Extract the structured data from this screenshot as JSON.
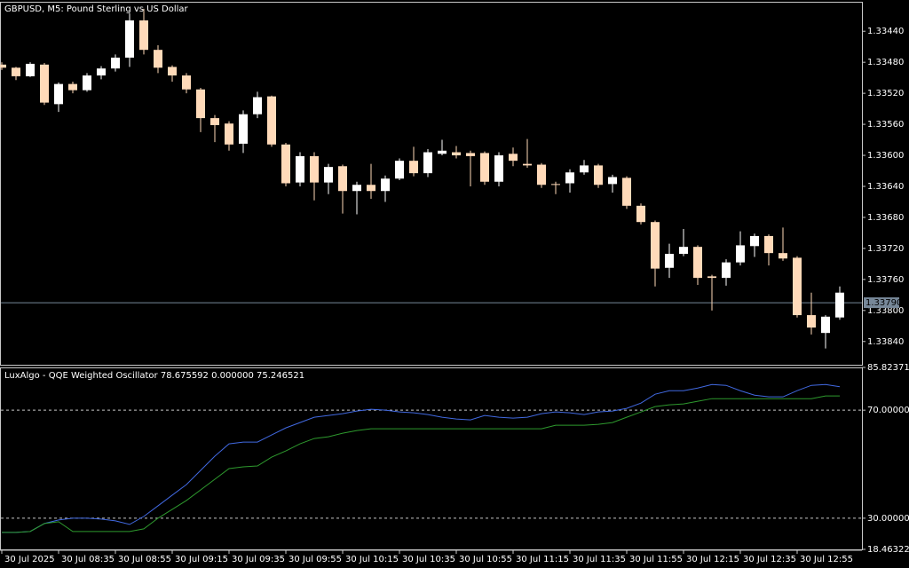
{
  "chart_data": [
    {
      "type": "candlestick",
      "title": "GBPUSD, M5:  Pound Sterling vs US Dollar",
      "open": [
        1.33483,
        1.33487,
        1.33498,
        1.33483,
        1.33534,
        1.33508,
        1.33516,
        1.33497,
        1.33488,
        1.33474,
        1.33426,
        1.33464,
        1.33486,
        1.33497,
        1.33515,
        1.33552,
        1.33559,
        1.33585,
        1.33547,
        1.33524,
        1.33586,
        1.33635,
        1.33601,
        1.33635,
        1.33614,
        1.33646,
        1.33638,
        1.33646,
        1.3363,
        1.33607,
        1.33623,
        1.33598,
        1.33596,
        1.33597,
        1.33597,
        1.33634,
        1.33598,
        1.33611,
        1.33612,
        1.33637,
        1.33636,
        1.33622,
        1.33613,
        1.33637,
        1.33629,
        1.33665,
        1.33686,
        1.33745,
        1.33727,
        1.33718,
        1.33756,
        1.33758,
        1.33738,
        1.33717,
        1.33704,
        1.33726,
        1.33732,
        1.33806,
        1.33829,
        1.33809
      ],
      "high": [
        1.3349,
        1.33503,
        1.33499,
        1.33535,
        1.33544,
        1.3352,
        1.33518,
        1.33502,
        1.33492,
        1.33486,
        1.3347,
        1.33494,
        1.33505,
        1.3352,
        1.3357,
        1.33583,
        1.33594,
        1.33597,
        1.33552,
        1.33589,
        1.3364,
        1.3364,
        1.33658,
        1.3365,
        1.33675,
        1.33676,
        1.33656,
        1.3366,
        1.33632,
        1.33627,
        1.33628,
        1.336,
        1.33604,
        1.3364,
        1.33638,
        1.3364,
        1.33614,
        1.33616,
        1.33642,
        1.3365,
        1.33648,
        1.33625,
        1.33642,
        1.33648,
        1.33669,
        1.33689,
        1.33769,
        1.33758,
        1.3373,
        1.33767,
        1.338,
        1.33768,
        1.33742,
        1.33731,
        1.33742,
        1.33736,
        1.33809,
        1.33831,
        1.33849,
        1.33812
      ],
      "low": [
        1.3348,
        1.33486,
        1.3348,
        1.33481,
        1.33506,
        1.33505,
        1.33494,
        1.33485,
        1.3347,
        1.33417,
        1.33411,
        1.33458,
        1.33484,
        1.33494,
        1.33513,
        1.33548,
        1.33556,
        1.33542,
        1.33518,
        1.33523,
        1.33584,
        1.33596,
        1.33596,
        1.33611,
        1.33612,
        1.33634,
        1.33611,
        1.33626,
        1.33604,
        1.33589,
        1.33592,
        1.3358,
        1.33588,
        1.33594,
        1.33595,
        1.33596,
        1.3359,
        1.33579,
        1.3361,
        1.33634,
        1.33618,
        1.33606,
        1.33611,
        1.33625,
        1.33627,
        1.33662,
        1.33684,
        1.33714,
        1.33695,
        1.33716,
        1.33754,
        1.33734,
        1.33698,
        1.33701,
        1.33702,
        1.33693,
        1.3373,
        1.33777,
        1.33806,
        1.33769
      ],
      "close": [
        1.33487,
        1.33498,
        1.33482,
        1.33532,
        1.33508,
        1.33516,
        1.33497,
        1.33488,
        1.33474,
        1.33426,
        1.33464,
        1.33487,
        1.33497,
        1.33515,
        1.33552,
        1.33561,
        1.33586,
        1.33547,
        1.33525,
        1.33586,
        1.33636,
        1.33601,
        1.33635,
        1.33615,
        1.33646,
        1.33638,
        1.33646,
        1.3363,
        1.33607,
        1.33623,
        1.33596,
        1.33594,
        1.336,
        1.33601,
        1.33634,
        1.336,
        1.33607,
        1.33613,
        1.33638,
        1.33638,
        1.33622,
        1.33613,
        1.33638,
        1.33628,
        1.33665,
        1.33686,
        1.33746,
        1.33727,
        1.33718,
        1.33758,
        1.33758,
        1.33738,
        1.33716,
        1.33704,
        1.33726,
        1.33733,
        1.33806,
        1.33822,
        1.33808,
        1.33777
      ],
      "up_color": "#ffdab9",
      "down_color": "#ffffff",
      "current_price": {
        "value": 1.3379,
        "label": "1.33790"
      },
      "ylim": [
        1.3387,
        1.33402
      ],
      "yticks": [
        {
          "value": 1.3384,
          "label": "1.33840"
        },
        {
          "value": 1.338,
          "label": "1.33800"
        },
        {
          "value": 1.3376,
          "label": "1.33760"
        },
        {
          "value": 1.3372,
          "label": "1.33720"
        },
        {
          "value": 1.3368,
          "label": "1.33680"
        },
        {
          "value": 1.3364,
          "label": "1.33640"
        },
        {
          "value": 1.336,
          "label": "1.33600"
        },
        {
          "value": 1.3356,
          "label": "1.33560"
        },
        {
          "value": 1.3352,
          "label": "1.33520"
        },
        {
          "value": 1.3348,
          "label": "1.33480"
        },
        {
          "value": 1.3344,
          "label": "1.33440"
        }
      ]
    },
    {
      "type": "line",
      "title": "LuxAlgo - QQE Weighted Oscillator 78.675592 0.000000 75.246521",
      "categories": [
        "30 Jul 2025",
        null,
        null,
        null,
        "30 Jul 08:35",
        null,
        null,
        null,
        "30 Jul 08:55",
        null,
        null,
        null,
        "30 Jul 09:15",
        null,
        null,
        null,
        "30 Jul 09:35",
        null,
        null,
        null,
        "30 Jul 09:55",
        null,
        null,
        null,
        "30 Jul 10:15",
        null,
        null,
        null,
        "30 Jul 10:35",
        null,
        null,
        null,
        "30 Jul 10:55",
        null,
        null,
        null,
        "30 Jul 11:15",
        null,
        null,
        null,
        "30 Jul 11:35",
        null,
        null,
        null,
        "30 Jul 11:55",
        null,
        null,
        null,
        "30 Jul 12:15",
        null,
        null,
        null,
        "30 Jul 12:35",
        null,
        null,
        null,
        "30 Jul 12:55",
        null,
        null,
        null
      ],
      "series": [
        {
          "color": "#4169e1",
          "values": [
            24.75,
            24.75,
            25.08,
            28.03,
            29.34,
            30.0,
            30.0,
            29.67,
            29.02,
            27.7,
            30.66,
            34.59,
            38.52,
            42.46,
            47.7,
            52.95,
            57.54,
            58.2,
            58.2,
            60.82,
            63.44,
            65.41,
            67.38,
            68.03,
            68.69,
            69.67,
            70.33,
            70.0,
            69.34,
            69.02,
            68.36,
            67.38,
            66.72,
            66.39,
            68.03,
            67.38,
            67.05,
            67.38,
            68.69,
            69.34,
            69.02,
            68.36,
            69.34,
            69.67,
            70.66,
            72.62,
            75.9,
            77.21,
            77.21,
            78.2,
            79.51,
            79.18,
            77.21,
            75.57,
            74.92,
            74.92,
            77.21,
            79.18,
            79.51,
            78.68
          ]
        },
        {
          "color": "#2e9a2e",
          "values": [
            24.75,
            24.75,
            25.08,
            28.03,
            28.69,
            25.08,
            25.08,
            25.08,
            25.08,
            25.08,
            26.07,
            30.0,
            33.28,
            36.56,
            40.49,
            44.43,
            48.36,
            49.02,
            49.34,
            52.62,
            54.92,
            57.54,
            59.51,
            60.16,
            61.48,
            62.46,
            63.11,
            63.11,
            63.11,
            63.11,
            63.11,
            63.11,
            63.11,
            63.11,
            63.11,
            63.11,
            63.11,
            63.11,
            63.11,
            64.43,
            64.43,
            64.43,
            64.75,
            65.41,
            67.38,
            69.34,
            71.31,
            71.97,
            72.3,
            73.28,
            74.26,
            74.26,
            74.26,
            74.26,
            74.26,
            74.26,
            74.26,
            74.26,
            75.25,
            75.25
          ]
        }
      ],
      "levels": [
        70,
        30
      ],
      "ylim": [
        18.463228,
        85.823711
      ],
      "yticks": [
        {
          "value": 85.823711,
          "label": "85.823711"
        },
        {
          "value": 70,
          "label": "70.000000"
        },
        {
          "value": 30,
          "label": "30.000000"
        },
        {
          "value": 18.463228,
          "label": "18.463228"
        }
      ]
    }
  ]
}
